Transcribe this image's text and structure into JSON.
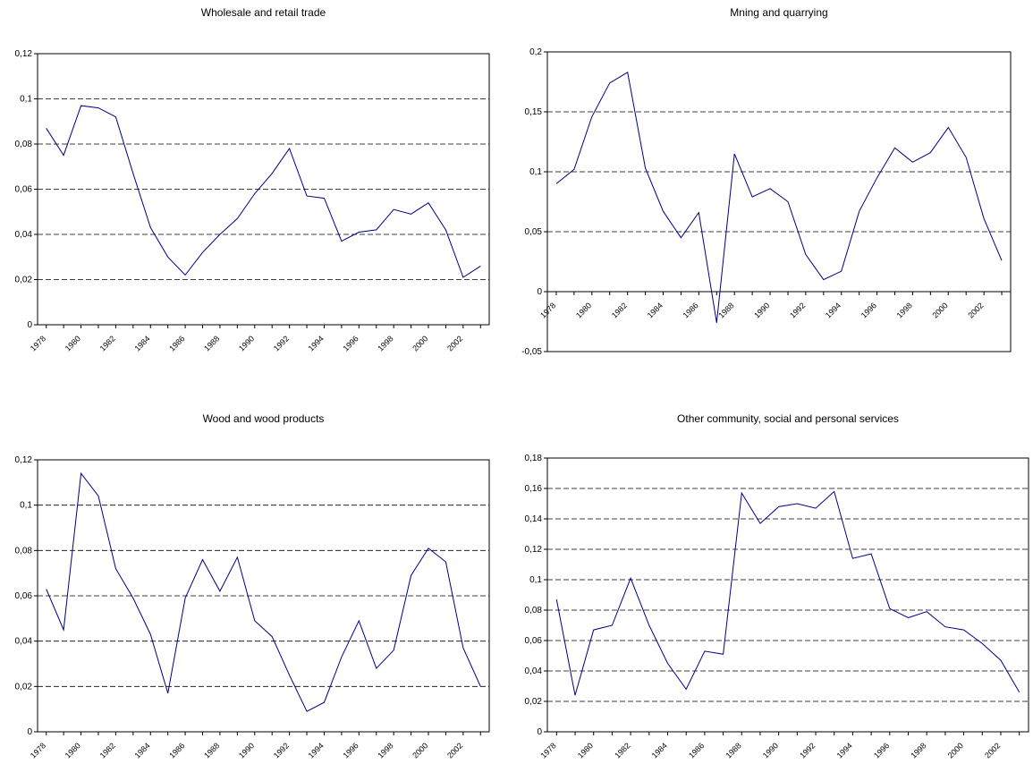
{
  "chart_data": [
    {
      "type": "line",
      "title": "Wholesale and retail trade",
      "categories": [
        "1978",
        null,
        "1980",
        null,
        "1982",
        null,
        "1984",
        null,
        "1986",
        null,
        "1988",
        null,
        "1990",
        null,
        "1992",
        null,
        "1994",
        null,
        "1996",
        null,
        "1998",
        null,
        "2000",
        null,
        "2002",
        null
      ],
      "series": [
        {
          "color": "#000080",
          "values": [
            0.087,
            0.075,
            0.097,
            0.096,
            0.092,
            0.067,
            0.043,
            0.03,
            0.022,
            0.032,
            0.04,
            0.047,
            0.058,
            0.067,
            0.078,
            0.057,
            0.056,
            0.037,
            0.041,
            0.042,
            0.051,
            0.049,
            0.054,
            0.042,
            0.021,
            0.026
          ]
        }
      ],
      "ylim": [
        0,
        0.12
      ],
      "yticks": [
        {
          "value": 0,
          "label": "0"
        },
        {
          "value": 0.02,
          "label": "0,02"
        },
        {
          "value": 0.04,
          "label": "0,04"
        },
        {
          "value": 0.06,
          "label": "0,06"
        },
        {
          "value": 0.08,
          "label": "0,08"
        },
        {
          "value": 0.1,
          "label": "0,1"
        },
        {
          "value": 0.12,
          "label": "0,12"
        }
      ],
      "grid": true
    },
    {
      "type": "line",
      "title": "Mning and quarrying",
      "categories": [
        "1978",
        null,
        "1980",
        null,
        "1982",
        null,
        "1984",
        null,
        "1986",
        null,
        "1988",
        null,
        "1990",
        null,
        "1992",
        null,
        "1994",
        null,
        "1996",
        null,
        "1998",
        null,
        "2000",
        null,
        "2002",
        null
      ],
      "series": [
        {
          "color": "#000080",
          "values": [
            0.09,
            0.102,
            0.146,
            0.174,
            0.183,
            0.103,
            0.067,
            0.045,
            0.066,
            -0.026,
            0.115,
            0.079,
            0.086,
            0.075,
            0.031,
            0.01,
            0.017,
            0.067,
            0.095,
            0.12,
            0.108,
            0.116,
            0.137,
            0.112,
            0.061,
            0.026
          ]
        }
      ],
      "ylim": [
        -0.05,
        0.2
      ],
      "yticks": [
        {
          "value": -0.05,
          "label": "-0,05"
        },
        {
          "value": 0,
          "label": "0"
        },
        {
          "value": 0.05,
          "label": "0,05"
        },
        {
          "value": 0.1,
          "label": "0,1"
        },
        {
          "value": 0.15,
          "label": "0,15"
        },
        {
          "value": 0.2,
          "label": "0,2"
        }
      ],
      "grid": true
    },
    {
      "type": "line",
      "title": "Wood and wood products",
      "categories": [
        "1978",
        null,
        "1980",
        null,
        "1982",
        null,
        "1984",
        null,
        "1986",
        null,
        "1988",
        null,
        "1990",
        null,
        "1992",
        null,
        "1994",
        null,
        "1996",
        null,
        "1998",
        null,
        "2000",
        null,
        "2002",
        null
      ],
      "series": [
        {
          "color": "#000080",
          "values": [
            0.063,
            0.045,
            0.114,
            0.104,
            0.072,
            0.059,
            0.043,
            0.017,
            0.059,
            0.076,
            0.062,
            0.077,
            0.049,
            0.042,
            0.025,
            0.009,
            0.013,
            0.033,
            0.049,
            0.028,
            0.036,
            0.069,
            0.081,
            0.075,
            0.037,
            0.02
          ]
        }
      ],
      "ylim": [
        0,
        0.12
      ],
      "yticks": [
        {
          "value": 0,
          "label": "0"
        },
        {
          "value": 0.02,
          "label": "0,02"
        },
        {
          "value": 0.04,
          "label": "0,04"
        },
        {
          "value": 0.06,
          "label": "0,06"
        },
        {
          "value": 0.08,
          "label": "0,08"
        },
        {
          "value": 0.1,
          "label": "0,1"
        },
        {
          "value": 0.12,
          "label": "0,12"
        }
      ],
      "grid": true
    },
    {
      "type": "line",
      "title": "Other community, social and personal services",
      "categories": [
        "1978",
        null,
        "1980",
        null,
        "1982",
        null,
        "1984",
        null,
        "1986",
        null,
        "1988",
        null,
        "1990",
        null,
        "1992",
        null,
        "1994",
        null,
        "1996",
        null,
        "1998",
        null,
        "2000",
        null,
        "2002",
        null
      ],
      "series": [
        {
          "color": "#000080",
          "values": [
            0.087,
            0.024,
            0.067,
            0.07,
            0.101,
            0.07,
            0.045,
            0.028,
            0.053,
            0.051,
            0.157,
            0.137,
            0.148,
            0.15,
            0.147,
            0.158,
            0.114,
            0.117,
            0.081,
            0.075,
            0.079,
            0.069,
            0.067,
            0.058,
            0.047,
            0.026
          ]
        }
      ],
      "ylim": [
        0,
        0.18
      ],
      "yticks": [
        {
          "value": 0,
          "label": "0"
        },
        {
          "value": 0.02,
          "label": "0,02"
        },
        {
          "value": 0.04,
          "label": "0,04"
        },
        {
          "value": 0.06,
          "label": "0,06"
        },
        {
          "value": 0.08,
          "label": "0,08"
        },
        {
          "value": 0.1,
          "label": "0,1"
        },
        {
          "value": 0.12,
          "label": "0,12"
        },
        {
          "value": 0.14,
          "label": "0,14"
        },
        {
          "value": 0.16,
          "label": "0,16"
        },
        {
          "value": 0.18,
          "label": "0,18"
        }
      ],
      "grid": true
    }
  ]
}
